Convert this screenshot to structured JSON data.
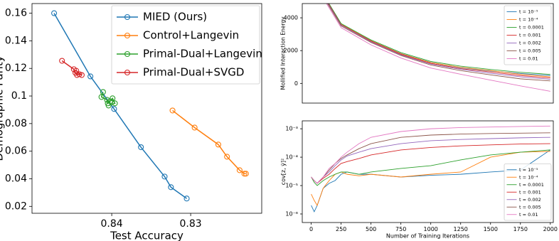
{
  "chart_data": [
    {
      "type": "line",
      "marker": "o",
      "xlabel": "Test Accuracy",
      "ylabel": "Demographic Parity",
      "xlim": [
        0.8501,
        0.821
      ],
      "ylim": [
        0.015,
        0.167
      ],
      "xticks": [
        0.84,
        0.83
      ],
      "yticks": [
        0.02,
        0.04,
        0.06,
        0.08,
        0.1,
        0.12,
        0.14,
        0.16
      ],
      "legend": "upper right",
      "grid": false,
      "series": [
        {
          "name": "MIED (Ours)",
          "color": "#1f77b4",
          "x": [
            0.8473,
            0.8427,
            0.8397,
            0.8363,
            0.8333,
            0.8325,
            0.8305
          ],
          "values": [
            0.16,
            0.1142,
            0.0906,
            0.0629,
            0.0416,
            0.0339,
            0.0257
          ]
        },
        {
          "name": "Control+Langevin",
          "color": "#ff7f0e",
          "x": [
            0.8323,
            0.8295,
            0.8265,
            0.8254,
            0.8238,
            0.8232,
            0.823
          ],
          "values": [
            0.0895,
            0.0771,
            0.0648,
            0.056,
            0.0462,
            0.0437,
            0.0437
          ]
        },
        {
          "name": "Primal-Dual+Langevin",
          "color": "#2ca02c",
          "x": [
            0.8411,
            0.8413,
            0.8406,
            0.8405,
            0.8402,
            0.8399,
            0.8396,
            0.8404
          ],
          "values": [
            0.1029,
            0.0993,
            0.0972,
            0.0947,
            0.0962,
            0.0983,
            0.0947,
            0.0931
          ]
        },
        {
          "name": "Primal-Dual+SVGD",
          "color": "#d62728",
          "x": [
            0.8463,
            0.8448,
            0.8446,
            0.8444,
            0.8441,
            0.8438,
            0.8445
          ],
          "values": [
            0.1255,
            0.1194,
            0.1168,
            0.1152,
            0.1158,
            0.1152,
            0.1183
          ]
        }
      ]
    },
    {
      "type": "line",
      "ylabel": "Mollified Interaction Energy",
      "xlim": [
        -75,
        2025
      ],
      "ylim": [
        -1200,
        4870
      ],
      "yticks": [
        0,
        2000,
        4000
      ],
      "legend": "upper right",
      "grid": false,
      "x": [
        0,
        100,
        250,
        500,
        750,
        1000,
        1250,
        1500,
        1750,
        2000
      ],
      "series": [
        {
          "name": "t = 10⁻⁵",
          "color": "#1f77b4",
          "values": [
            7000,
            5400,
            3600,
            2600,
            1820,
            1280,
            960,
            760,
            600,
            480
          ]
        },
        {
          "name": "t = 10⁻⁴",
          "color": "#ff7f0e",
          "values": [
            7000,
            5400,
            3600,
            2600,
            1810,
            1270,
            980,
            780,
            560,
            400
          ]
        },
        {
          "name": "t = 0.0001",
          "color": "#2ca02c",
          "values": [
            7000,
            5450,
            3650,
            2650,
            1880,
            1340,
            1050,
            850,
            680,
            550
          ]
        },
        {
          "name": "t = 0.001",
          "color": "#d62728",
          "values": [
            7000,
            5400,
            3580,
            2580,
            1780,
            1220,
            900,
            700,
            480,
            330
          ]
        },
        {
          "name": "t = 0.002",
          "color": "#9467bd",
          "values": [
            7000,
            5350,
            3550,
            2540,
            1740,
            1180,
            860,
            620,
            400,
            250
          ]
        },
        {
          "name": "t = 0.005",
          "color": "#8c564b",
          "values": [
            7000,
            5300,
            3500,
            2500,
            1700,
            1120,
            780,
            520,
            280,
            150
          ]
        },
        {
          "name": "t = 0.01",
          "color": "#e377c2",
          "values": [
            7000,
            5200,
            3400,
            2350,
            1550,
            940,
            560,
            200,
            -150,
            -480
          ]
        }
      ]
    },
    {
      "type": "line",
      "xlabel": "Number of Training Iterations",
      "ylabel": "cov[z, ỹ]²",
      "yscale": "log",
      "xlim": [
        -75,
        2025
      ],
      "ylim": [
        5e-07,
        0.0019
      ],
      "xticks": [
        0,
        250,
        500,
        750,
        1000,
        1250,
        1500,
        1750,
        2000
      ],
      "yticks": [
        {
          "value": 1e-06,
          "label": "10⁻⁶"
        },
        {
          "value": 1e-05,
          "label": "10⁻⁵"
        },
        {
          "value": 0.0001,
          "label": "10⁻⁴"
        },
        {
          "value": 0.001,
          "label": "10⁻³"
        }
      ],
      "legend": "lower right",
      "grid": false,
      "x": [
        0,
        25,
        50,
        100,
        150,
        200,
        250,
        300,
        400,
        500,
        750,
        1000,
        1250,
        1500,
        1750,
        2000
      ],
      "series": [
        {
          "name": "t = 10⁻⁵",
          "color": "#1f77b4",
          "values": [
            2e-06,
            1.2e-06,
            2e-06,
            8e-06,
            1.2e-05,
            1.5e-05,
            2.5e-05,
            3e-05,
            2.5e-05,
            2.5e-05,
            2e-05,
            2.3e-05,
            2.5e-05,
            3e-05,
            3.5e-05,
            0.00018
          ]
        },
        {
          "name": "t = 10⁻⁴",
          "color": "#ff7f0e",
          "values": [
            5e-06,
            3e-06,
            2e-06,
            8e-06,
            1.5e-05,
            2.5e-05,
            3e-05,
            2.5e-05,
            2.2e-05,
            2.5e-05,
            2e-05,
            2.5e-05,
            3e-05,
            0.0001,
            0.00015,
            0.00016
          ]
        },
        {
          "name": "t = 0.0001",
          "color": "#2ca02c",
          "values": [
            2e-05,
            1.3e-05,
            1e-05,
            1.5e-05,
            2e-05,
            2.5e-05,
            3e-05,
            3e-05,
            2.5e-05,
            3e-05,
            4e-05,
            5e-05,
            8e-05,
            0.00012,
            0.00015,
            0.00018
          ]
        },
        {
          "name": "t = 0.001",
          "color": "#d62728",
          "values": [
            2e-05,
            1.5e-05,
            1.2e-05,
            1.8e-05,
            2.5e-05,
            4e-05,
            6e-05,
            7e-05,
            9e-05,
            0.00012,
            0.00018,
            0.00022,
            0.00025,
            0.00027,
            0.00029,
            0.0003
          ]
        },
        {
          "name": "t = 0.002",
          "color": "#9467bd",
          "values": [
            2e-05,
            1.5e-05,
            1.2e-05,
            2e-05,
            3e-05,
            5e-05,
            8e-05,
            0.00011,
            0.00015,
            0.0002,
            0.0003,
            0.00038,
            0.00042,
            0.00045,
            0.00048,
            0.0005
          ]
        },
        {
          "name": "t = 0.005",
          "color": "#8c564b",
          "values": [
            2e-05,
            1.5e-05,
            1.2e-05,
            2e-05,
            3.5e-05,
            6e-05,
            9e-05,
            0.00012,
            0.0002,
            0.0003,
            0.0005,
            0.0006,
            0.00065,
            0.00068,
            0.0007,
            0.00072
          ]
        },
        {
          "name": "t = 0.01",
          "color": "#e377c2",
          "values": [
            2e-05,
            1.5e-05,
            1.2e-05,
            2e-05,
            4e-05,
            6e-05,
            0.0001,
            0.00015,
            0.0003,
            0.0005,
            0.0008,
            0.001,
            0.0011,
            0.00115,
            0.0012,
            0.00125
          ]
        }
      ]
    }
  ]
}
